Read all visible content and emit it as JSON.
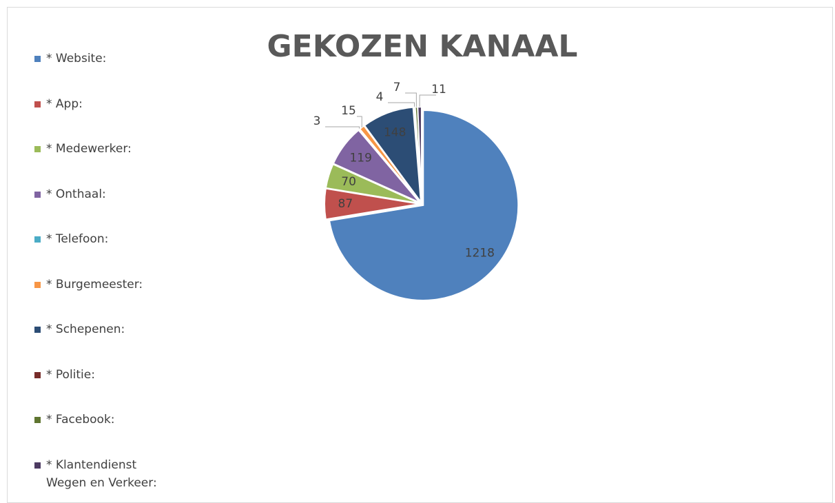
{
  "chart_data": {
    "type": "pie",
    "title": "GEKOZEN KANAAL",
    "categories": [
      "* Website:",
      "* App:",
      "* Medewerker:",
      "* Onthaal:",
      "* Telefoon:",
      "* Burgemeester:",
      "* Schepenen:",
      "* Politie:",
      "* Facebook:",
      "* Klantendienst Wegen en Verkeer:"
    ],
    "values": [
      1218,
      87,
      70,
      119,
      3,
      15,
      148,
      4,
      7,
      11
    ],
    "colors": [
      "#4f81bd",
      "#c0504d",
      "#9bbb59",
      "#8064a2",
      "#4bacc6",
      "#f79646",
      "#2c4d75",
      "#772c2a",
      "#5f7530",
      "#4d3b62"
    ],
    "legend": "left"
  }
}
